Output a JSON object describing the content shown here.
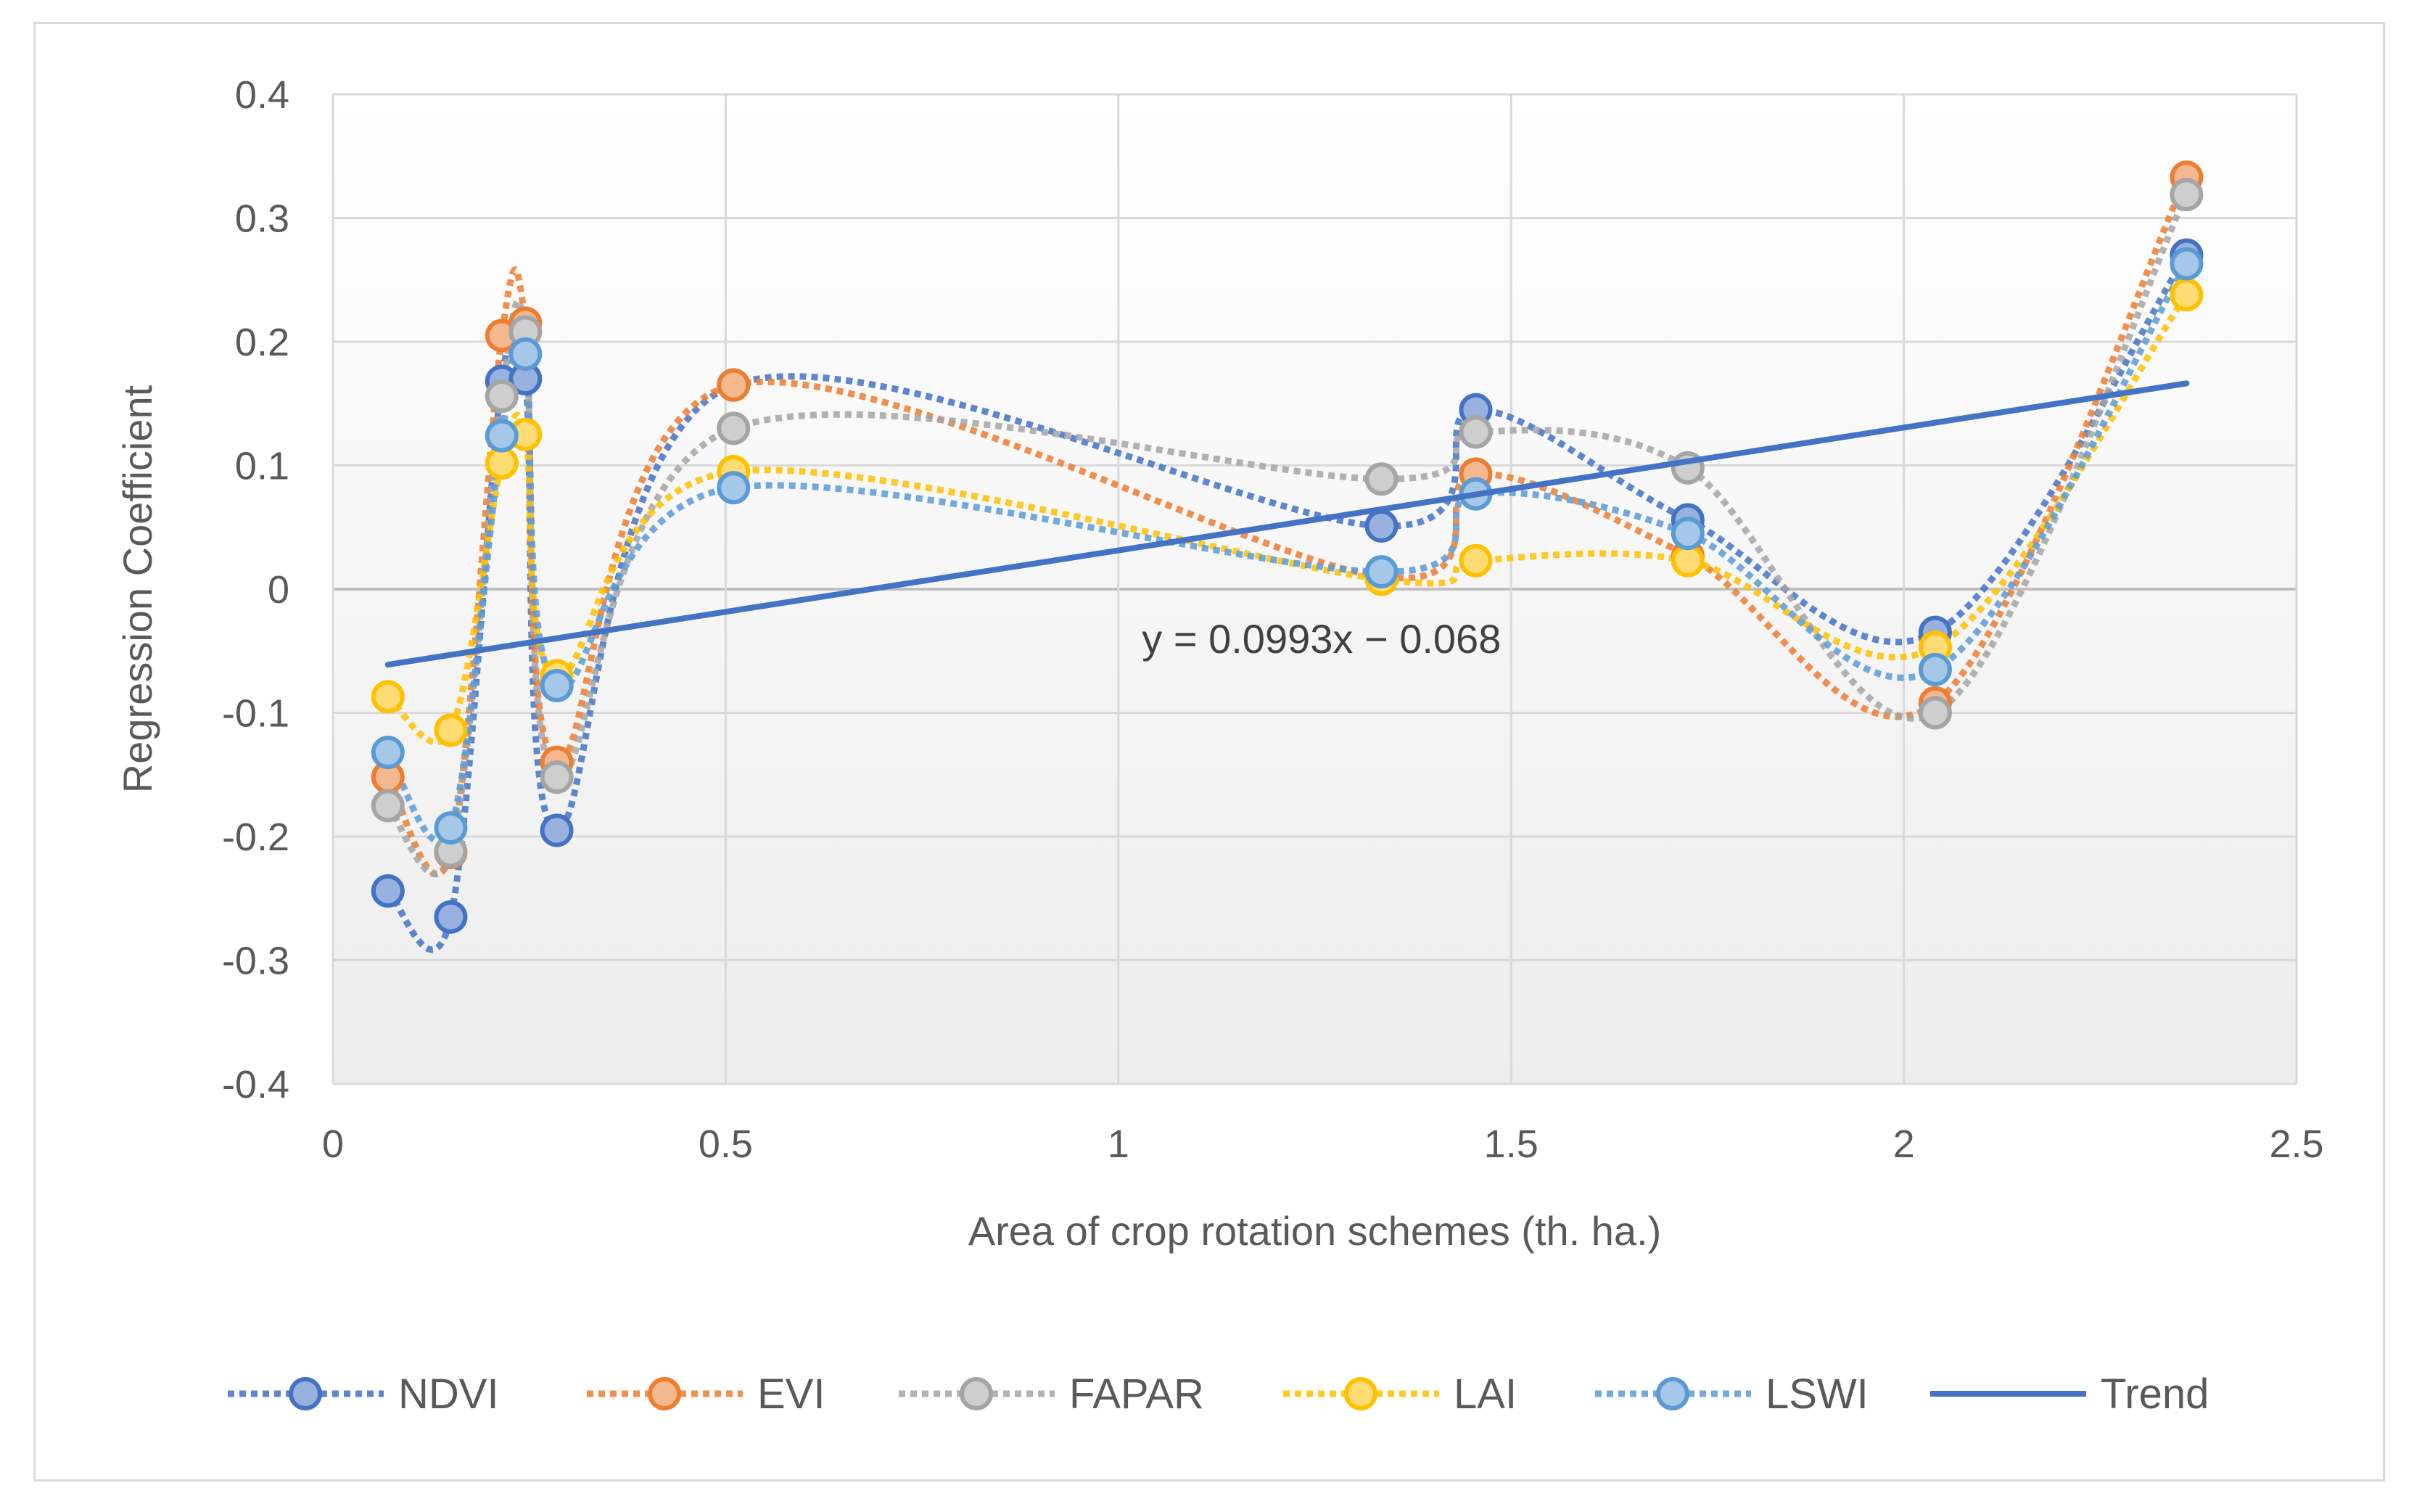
{
  "chart_data": {
    "type": "line",
    "title": "",
    "xlabel": "Area of crop rotation schemes (th. ha.)",
    "ylabel": "Regression Coefficient",
    "xlim": [
      0,
      2.5
    ],
    "ylim": [
      -0.4,
      0.4
    ],
    "x_ticks": [
      0,
      0.5,
      1,
      1.5,
      2,
      2.5
    ],
    "x_tick_labels": [
      "0",
      "0.5",
      "1",
      "1.5",
      "2",
      "2.5"
    ],
    "y_ticks": [
      0.4,
      0.3,
      0.2,
      0.1,
      0,
      -0.1,
      -0.2,
      -0.3,
      -0.4
    ],
    "y_tick_labels": [
      "0.4",
      "0.3",
      "0.2",
      "0.1",
      "0",
      "-0.1",
      "-0.2",
      "-0.3",
      "-0.4"
    ],
    "grid": true,
    "legend_position": "bottom",
    "x": [
      0.07,
      0.15,
      0.215,
      0.245,
      0.285,
      0.51,
      1.335,
      1.455,
      1.725,
      2.04,
      2.36
    ],
    "series": [
      {
        "name": "NDVI",
        "color": "#4472C4",
        "style": "dotted",
        "values": [
          -0.244,
          -0.265,
          0.168,
          0.17,
          -0.195,
          0.165,
          0.051,
          0.145,
          0.056,
          -0.035,
          0.27
        ]
      },
      {
        "name": "EVI",
        "color": "#ED7D31",
        "style": "dotted",
        "values": [
          -0.152,
          -0.213,
          0.205,
          0.215,
          -0.14,
          0.165,
          0.01,
          0.093,
          0.027,
          -0.092,
          0.333
        ]
      },
      {
        "name": "FAPAR",
        "color": "#A5A5A5",
        "style": "dotted",
        "values": [
          -0.175,
          -0.212,
          0.156,
          0.208,
          -0.152,
          0.13,
          0.089,
          0.127,
          0.098,
          -0.1,
          0.319
        ]
      },
      {
        "name": "LAI",
        "color": "#FFC000",
        "style": "dotted",
        "values": [
          -0.087,
          -0.114,
          0.102,
          0.125,
          -0.07,
          0.095,
          0.008,
          0.023,
          0.023,
          -0.047,
          0.238
        ]
      },
      {
        "name": "LSWI",
        "color": "#5B9BD5",
        "style": "dotted",
        "values": [
          -0.132,
          -0.193,
          0.124,
          0.19,
          -0.078,
          0.082,
          0.014,
          0.077,
          0.045,
          -0.065,
          0.263
        ]
      }
    ],
    "trend": {
      "name": "Trend",
      "color": "#4472C4",
      "slope": 0.0993,
      "intercept": -0.068,
      "x_range": [
        0.07,
        2.36
      ]
    },
    "annotation": {
      "text": "y = 0.0993x − 0.068",
      "x": 1.03,
      "y": -0.04
    }
  }
}
